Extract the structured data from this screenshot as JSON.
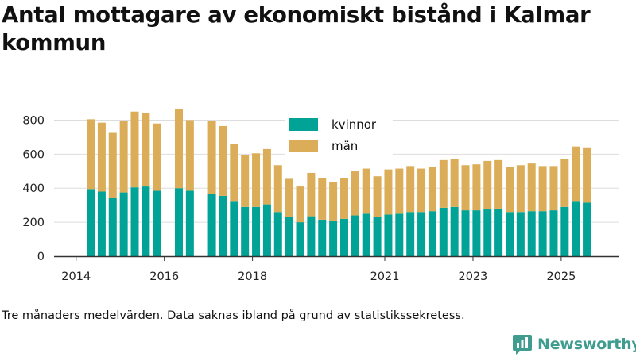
{
  "chart_data": {
    "type": "bar",
    "stacked": true,
    "title": "Antal mottagare av ekonomiskt bistånd i Kalmar kommun",
    "xlabel": "",
    "ylabel": "",
    "ylim": [
      0,
      900
    ],
    "yticks": [
      0,
      200,
      400,
      600,
      800
    ],
    "xlim": [
      2013.5,
      2026.3
    ],
    "xticks": [
      2014,
      2016,
      2018,
      2021,
      2023,
      2025
    ],
    "legend_position": "top-center",
    "series": [
      {
        "name": "kvinnor",
        "color": "#00a396",
        "points": [
          {
            "x": 2014.33,
            "y": 395
          },
          {
            "x": 2014.58,
            "y": 380
          },
          {
            "x": 2014.83,
            "y": 345
          },
          {
            "x": 2015.08,
            "y": 375
          },
          {
            "x": 2015.33,
            "y": 405
          },
          {
            "x": 2015.58,
            "y": 410
          },
          {
            "x": 2015.83,
            "y": 385
          },
          {
            "x": 2016.33,
            "y": 400
          },
          {
            "x": 2016.58,
            "y": 385
          },
          {
            "x": 2017.08,
            "y": 365
          },
          {
            "x": 2017.33,
            "y": 355
          },
          {
            "x": 2017.58,
            "y": 325
          },
          {
            "x": 2017.83,
            "y": 290
          },
          {
            "x": 2018.08,
            "y": 290
          },
          {
            "x": 2018.33,
            "y": 305
          },
          {
            "x": 2018.58,
            "y": 260
          },
          {
            "x": 2018.83,
            "y": 230
          },
          {
            "x": 2019.08,
            "y": 200
          },
          {
            "x": 2019.33,
            "y": 235
          },
          {
            "x": 2019.58,
            "y": 215
          },
          {
            "x": 2019.83,
            "y": 210
          },
          {
            "x": 2020.08,
            "y": 220
          },
          {
            "x": 2020.33,
            "y": 240
          },
          {
            "x": 2020.58,
            "y": 250
          },
          {
            "x": 2020.83,
            "y": 230
          },
          {
            "x": 2021.08,
            "y": 245
          },
          {
            "x": 2021.33,
            "y": 250
          },
          {
            "x": 2021.58,
            "y": 260
          },
          {
            "x": 2021.83,
            "y": 260
          },
          {
            "x": 2022.08,
            "y": 265
          },
          {
            "x": 2022.33,
            "y": 285
          },
          {
            "x": 2022.58,
            "y": 290
          },
          {
            "x": 2022.83,
            "y": 270
          },
          {
            "x": 2023.08,
            "y": 270
          },
          {
            "x": 2023.33,
            "y": 275
          },
          {
            "x": 2023.58,
            "y": 280
          },
          {
            "x": 2023.83,
            "y": 260
          },
          {
            "x": 2024.08,
            "y": 260
          },
          {
            "x": 2024.33,
            "y": 265
          },
          {
            "x": 2024.58,
            "y": 265
          },
          {
            "x": 2024.83,
            "y": 270
          },
          {
            "x": 2025.08,
            "y": 290
          },
          {
            "x": 2025.33,
            "y": 325
          },
          {
            "x": 2025.58,
            "y": 315
          }
        ]
      },
      {
        "name": "män",
        "color": "#dbad59",
        "points": [
          {
            "x": 2014.33,
            "y": 410
          },
          {
            "x": 2014.58,
            "y": 405
          },
          {
            "x": 2014.83,
            "y": 380
          },
          {
            "x": 2015.08,
            "y": 420
          },
          {
            "x": 2015.33,
            "y": 445
          },
          {
            "x": 2015.58,
            "y": 430
          },
          {
            "x": 2015.83,
            "y": 395
          },
          {
            "x": 2016.33,
            "y": 465
          },
          {
            "x": 2016.58,
            "y": 415
          },
          {
            "x": 2017.08,
            "y": 430
          },
          {
            "x": 2017.33,
            "y": 410
          },
          {
            "x": 2017.58,
            "y": 335
          },
          {
            "x": 2017.83,
            "y": 305
          },
          {
            "x": 2018.08,
            "y": 315
          },
          {
            "x": 2018.33,
            "y": 325
          },
          {
            "x": 2018.58,
            "y": 275
          },
          {
            "x": 2018.83,
            "y": 225
          },
          {
            "x": 2019.08,
            "y": 210
          },
          {
            "x": 2019.33,
            "y": 255
          },
          {
            "x": 2019.58,
            "y": 245
          },
          {
            "x": 2019.83,
            "y": 225
          },
          {
            "x": 2020.08,
            "y": 240
          },
          {
            "x": 2020.33,
            "y": 260
          },
          {
            "x": 2020.58,
            "y": 265
          },
          {
            "x": 2020.83,
            "y": 240
          },
          {
            "x": 2021.08,
            "y": 265
          },
          {
            "x": 2021.33,
            "y": 265
          },
          {
            "x": 2021.58,
            "y": 270
          },
          {
            "x": 2021.83,
            "y": 255
          },
          {
            "x": 2022.08,
            "y": 260
          },
          {
            "x": 2022.33,
            "y": 280
          },
          {
            "x": 2022.58,
            "y": 280
          },
          {
            "x": 2022.83,
            "y": 265
          },
          {
            "x": 2023.08,
            "y": 270
          },
          {
            "x": 2023.33,
            "y": 285
          },
          {
            "x": 2023.58,
            "y": 285
          },
          {
            "x": 2023.83,
            "y": 265
          },
          {
            "x": 2024.08,
            "y": 275
          },
          {
            "x": 2024.33,
            "y": 280
          },
          {
            "x": 2024.58,
            "y": 265
          },
          {
            "x": 2024.83,
            "y": 260
          },
          {
            "x": 2025.08,
            "y": 280
          },
          {
            "x": 2025.33,
            "y": 320
          },
          {
            "x": 2025.58,
            "y": 325
          }
        ]
      }
    ]
  },
  "footnote": "Tre månaders medelvärden. Data saknas ibland på grund av statistikssekretess.",
  "logo": {
    "text": "Newsworthy",
    "icon": "newsworthy-logo-icon",
    "color": "#3f9c8f"
  },
  "colors": {
    "grid": "#dddddd",
    "axis": "#333333"
  }
}
